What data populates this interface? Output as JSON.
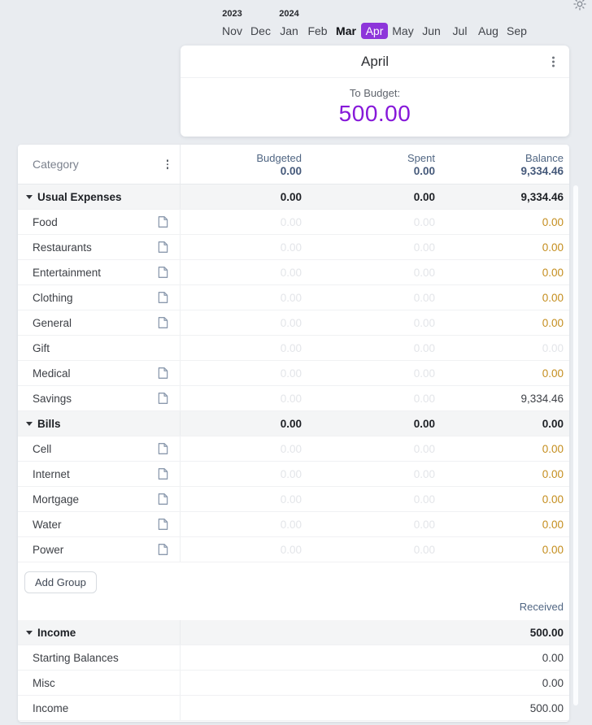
{
  "theme": {
    "accent_purple": "#8618d9",
    "selected_month_bg": "#8d35da",
    "warning_orange": "#c48d1d",
    "header_slate": "#506683"
  },
  "top_bar": {
    "theme_toggle_icon": "sun-icon"
  },
  "month_nav": {
    "years": [
      {
        "label": "2023",
        "month_index": 0
      },
      {
        "label": "2024",
        "month_index": 2
      }
    ],
    "months": [
      {
        "label": "Nov",
        "bold": false,
        "selected": false
      },
      {
        "label": "Dec",
        "bold": false,
        "selected": false
      },
      {
        "label": "Jan",
        "bold": false,
        "selected": false
      },
      {
        "label": "Feb",
        "bold": false,
        "selected": false
      },
      {
        "label": "Mar",
        "bold": true,
        "selected": false
      },
      {
        "label": "Apr",
        "bold": false,
        "selected": true
      },
      {
        "label": "May",
        "bold": false,
        "selected": false
      },
      {
        "label": "Jun",
        "bold": false,
        "selected": false
      },
      {
        "label": "Jul",
        "bold": false,
        "selected": false
      },
      {
        "label": "Aug",
        "bold": false,
        "selected": false
      },
      {
        "label": "Sep",
        "bold": false,
        "selected": false
      }
    ]
  },
  "summary_card": {
    "title": "April",
    "menu_icon": "kebab-menu-icon",
    "to_budget_label": "To Budget:",
    "to_budget_value": "500.00"
  },
  "table": {
    "category_header": "Category",
    "category_menu_icon": "kebab-menu-icon",
    "columns": [
      {
        "label": "Budgeted",
        "total": "0.00"
      },
      {
        "label": "Spent",
        "total": "0.00"
      },
      {
        "label": "Balance",
        "total": "9,334.46"
      }
    ],
    "groups": [
      {
        "name": "Usual Expenses",
        "budgeted": "0.00",
        "spent": "0.00",
        "balance": "9,334.46",
        "rows": [
          {
            "name": "Food",
            "has_note": true,
            "budgeted": "0.00",
            "spent": "0.00",
            "balance": "0.00",
            "balance_style": "warning"
          },
          {
            "name": "Restaurants",
            "has_note": true,
            "budgeted": "0.00",
            "spent": "0.00",
            "balance": "0.00",
            "balance_style": "warning"
          },
          {
            "name": "Entertainment",
            "has_note": true,
            "budgeted": "0.00",
            "spent": "0.00",
            "balance": "0.00",
            "balance_style": "warning"
          },
          {
            "name": "Clothing",
            "has_note": true,
            "budgeted": "0.00",
            "spent": "0.00",
            "balance": "0.00",
            "balance_style": "warning"
          },
          {
            "name": "General",
            "has_note": true,
            "budgeted": "0.00",
            "spent": "0.00",
            "balance": "0.00",
            "balance_style": "warning"
          },
          {
            "name": "Gift",
            "has_note": false,
            "budgeted": "0.00",
            "spent": "0.00",
            "balance": "0.00",
            "balance_style": "muted"
          },
          {
            "name": "Medical",
            "has_note": true,
            "budgeted": "0.00",
            "spent": "0.00",
            "balance": "0.00",
            "balance_style": "warning"
          },
          {
            "name": "Savings",
            "has_note": true,
            "budgeted": "0.00",
            "spent": "0.00",
            "balance": "9,334.46",
            "balance_style": "normal"
          }
        ]
      },
      {
        "name": "Bills",
        "budgeted": "0.00",
        "spent": "0.00",
        "balance": "0.00",
        "rows": [
          {
            "name": "Cell",
            "has_note": true,
            "budgeted": "0.00",
            "spent": "0.00",
            "balance": "0.00",
            "balance_style": "warning"
          },
          {
            "name": "Internet",
            "has_note": true,
            "budgeted": "0.00",
            "spent": "0.00",
            "balance": "0.00",
            "balance_style": "warning"
          },
          {
            "name": "Mortgage",
            "has_note": true,
            "budgeted": "0.00",
            "spent": "0.00",
            "balance": "0.00",
            "balance_style": "warning"
          },
          {
            "name": "Water",
            "has_note": true,
            "budgeted": "0.00",
            "spent": "0.00",
            "balance": "0.00",
            "balance_style": "warning"
          },
          {
            "name": "Power",
            "has_note": true,
            "budgeted": "0.00",
            "spent": "0.00",
            "balance": "0.00",
            "balance_style": "warning"
          }
        ]
      }
    ],
    "add_group_label": "Add Group",
    "received_header": "Received",
    "income_group": {
      "name": "Income",
      "received": "500.00",
      "rows": [
        {
          "name": "Starting Balances",
          "received": "0.00"
        },
        {
          "name": "Misc",
          "received": "0.00"
        },
        {
          "name": "Income",
          "received": "500.00"
        }
      ]
    }
  }
}
